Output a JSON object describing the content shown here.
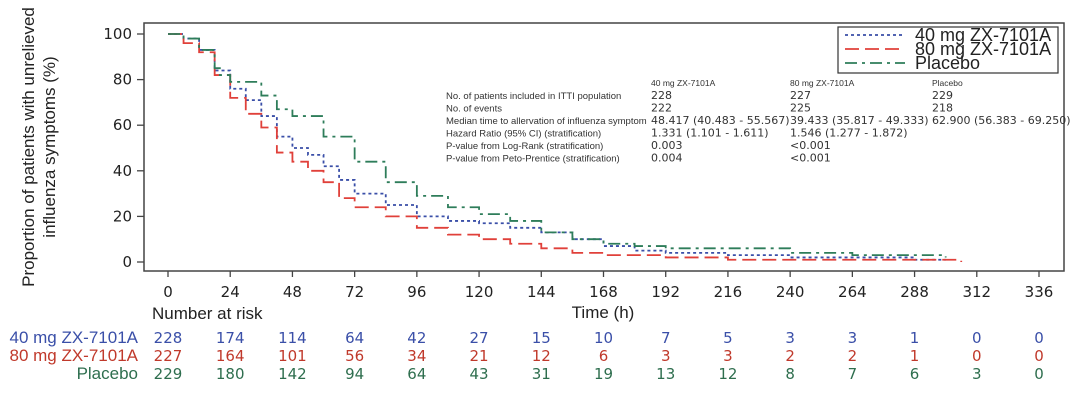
{
  "chart_data": {
    "type": "line",
    "subtype": "kaplan-meier step curve",
    "title": "",
    "xlabel": "Time (h)",
    "ylabel": "Proportion of patients with unrelieved influenza symptoms (%)",
    "ylabel_lines": [
      "Proportion of patients with unrelieved",
      "influenza symptoms (%)"
    ],
    "xlim": [
      0,
      336
    ],
    "ylim": [
      0,
      100
    ],
    "x_ticks": [
      0,
      24,
      48,
      72,
      96,
      120,
      144,
      168,
      192,
      216,
      240,
      264,
      288,
      312,
      336
    ],
    "y_ticks": [
      0,
      20,
      40,
      60,
      80,
      100
    ],
    "grid": false,
    "legend_position": "top-right",
    "series": [
      {
        "name": "40 mg ZX-7101A",
        "color": "#3a4fa8",
        "style": "dotted",
        "points": [
          [
            0,
            100
          ],
          [
            6,
            98
          ],
          [
            12,
            93
          ],
          [
            18,
            84
          ],
          [
            24,
            76
          ],
          [
            30,
            71
          ],
          [
            36,
            64
          ],
          [
            42,
            55
          ],
          [
            48,
            50
          ],
          [
            54,
            47
          ],
          [
            60,
            42
          ],
          [
            66,
            36
          ],
          [
            72,
            30
          ],
          [
            84,
            25
          ],
          [
            96,
            20
          ],
          [
            108,
            18
          ],
          [
            120,
            17
          ],
          [
            132,
            15
          ],
          [
            144,
            13
          ],
          [
            156,
            10
          ],
          [
            168,
            7
          ],
          [
            180,
            5
          ],
          [
            192,
            4
          ],
          [
            216,
            3
          ],
          [
            240,
            2
          ],
          [
            264,
            2
          ],
          [
            288,
            1
          ],
          [
            300,
            1
          ]
        ]
      },
      {
        "name": "80 mg ZX-7101A",
        "color": "#e0403a",
        "style": "dashed",
        "points": [
          [
            0,
            100
          ],
          [
            6,
            96
          ],
          [
            12,
            92
          ],
          [
            18,
            82
          ],
          [
            24,
            72
          ],
          [
            30,
            65
          ],
          [
            36,
            59
          ],
          [
            42,
            48
          ],
          [
            48,
            44
          ],
          [
            54,
            40
          ],
          [
            60,
            35
          ],
          [
            66,
            28
          ],
          [
            72,
            24
          ],
          [
            84,
            20
          ],
          [
            96,
            15
          ],
          [
            108,
            12
          ],
          [
            120,
            10
          ],
          [
            132,
            8
          ],
          [
            144,
            6
          ],
          [
            156,
            4
          ],
          [
            168,
            3
          ],
          [
            192,
            2
          ],
          [
            216,
            1
          ],
          [
            240,
            1
          ],
          [
            264,
            1
          ],
          [
            288,
            1
          ],
          [
            306,
            0
          ]
        ]
      },
      {
        "name": "Placebo",
        "color": "#2e7d5a",
        "style": "dash-dot",
        "points": [
          [
            0,
            100
          ],
          [
            6,
            98
          ],
          [
            12,
            93
          ],
          [
            18,
            85
          ],
          [
            20,
            82
          ],
          [
            24,
            79
          ],
          [
            36,
            73
          ],
          [
            42,
            67
          ],
          [
            48,
            64
          ],
          [
            60,
            55
          ],
          [
            72,
            44
          ],
          [
            84,
            35
          ],
          [
            96,
            29
          ],
          [
            108,
            24
          ],
          [
            120,
            21
          ],
          [
            132,
            18
          ],
          [
            144,
            13
          ],
          [
            156,
            10
          ],
          [
            168,
            8
          ],
          [
            180,
            7
          ],
          [
            192,
            6
          ],
          [
            216,
            6
          ],
          [
            240,
            4
          ],
          [
            264,
            3
          ],
          [
            288,
            3
          ],
          [
            300,
            2
          ]
        ]
      }
    ],
    "stats_table": {
      "row_labels": [
        "No. of patients included in ITTI population",
        "No. of events",
        "Median time to allervation of influenza symptom",
        "Hazard Ratio (95% CI) (stratification)",
        "P-value from Log-Rank (stratification)",
        "P-value from Peto-Prentice (stratification)"
      ],
      "columns": [
        {
          "header": "40 mg ZX-7101A",
          "values": [
            "228",
            "222",
            "48.417 (40.483 - 55.567)",
            "1.331 (1.101 - 1.611)",
            "0.003",
            "0.004"
          ]
        },
        {
          "header": "80 mg ZX-7101A",
          "values": [
            "227",
            "225",
            "39.433 (35.817 - 49.333)",
            "1.546 (1.277 - 1.872)",
            "<0.001",
            "<0.001"
          ]
        },
        {
          "header": "Placebo",
          "values": [
            "229",
            "218",
            "62.900 (56.383 - 69.250)",
            "",
            "",
            ""
          ]
        }
      ]
    },
    "risk_table": {
      "title": "Number at risk",
      "times": [
        0,
        24,
        48,
        72,
        96,
        120,
        144,
        168,
        192,
        216,
        240,
        264,
        288,
        312,
        336
      ],
      "rows": [
        {
          "name": "40 mg ZX-7101A",
          "color": "#3a4fa8",
          "values": [
            228,
            174,
            114,
            64,
            42,
            27,
            15,
            10,
            7,
            5,
            3,
            3,
            1,
            0,
            0
          ]
        },
        {
          "name": "80 mg ZX-7101A",
          "color": "#c0392b",
          "values": [
            227,
            164,
            101,
            56,
            34,
            21,
            12,
            6,
            3,
            3,
            2,
            2,
            1,
            0,
            0
          ]
        },
        {
          "name": "Placebo",
          "color": "#2e6e4e",
          "values": [
            229,
            180,
            142,
            94,
            64,
            43,
            31,
            19,
            13,
            12,
            8,
            7,
            6,
            3,
            0
          ]
        }
      ]
    }
  }
}
